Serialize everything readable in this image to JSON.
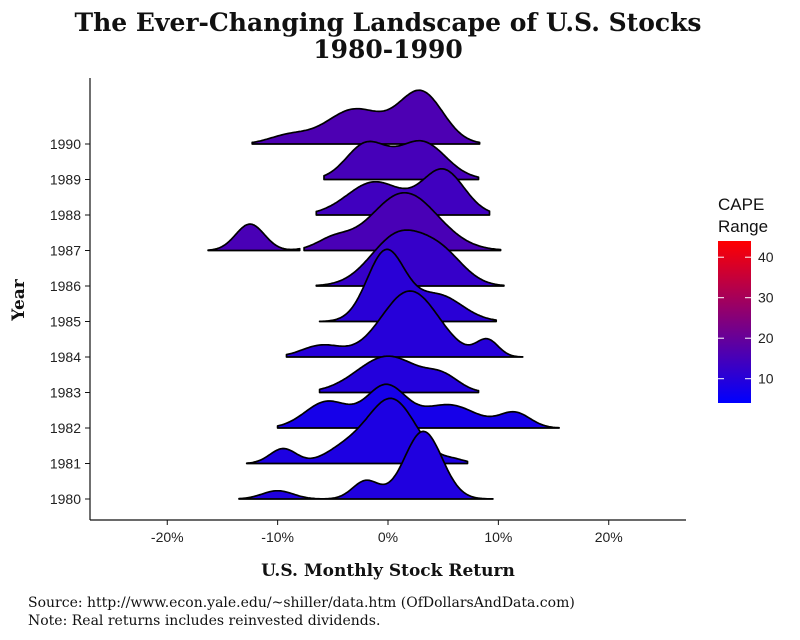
{
  "chart_data": {
    "type": "ridgeline",
    "title_line1": "The Ever-Changing Landscape of U.S. Stocks",
    "title_line2": "1980-1990",
    "xlabel": "U.S. Monthly Stock Return",
    "ylabel": "Year",
    "xlim": [
      -0.27,
      0.27
    ],
    "x_ticks": [
      -0.2,
      -0.1,
      0.0,
      0.1,
      0.2
    ],
    "x_tick_labels": [
      "-20%",
      "-10%",
      "0%",
      "10%",
      "20%"
    ],
    "categories": [
      "1980",
      "1981",
      "1982",
      "1983",
      "1984",
      "1985",
      "1986",
      "1987",
      "1988",
      "1989",
      "1990"
    ],
    "series": [
      {
        "year": "1980",
        "cape": 9.0,
        "peaks": [
          {
            "mu": -0.1,
            "sd": 0.014,
            "h": 0.25
          },
          {
            "mu": -0.02,
            "sd": 0.012,
            "h": 0.55
          },
          {
            "mu": 0.032,
            "sd": 0.017,
            "h": 2.05
          }
        ],
        "range": [
          -0.135,
          0.095
        ]
      },
      {
        "year": "1981",
        "cape": 8.5,
        "peaks": [
          {
            "mu": -0.095,
            "sd": 0.012,
            "h": 0.45
          },
          {
            "mu": -0.04,
            "sd": 0.018,
            "h": 0.4
          },
          {
            "mu": 0.003,
            "sd": 0.022,
            "h": 1.95
          },
          {
            "mu": 0.06,
            "sd": 0.01,
            "h": 0.1
          }
        ],
        "range": [
          -0.128,
          0.072
        ]
      },
      {
        "year": "1982",
        "cape": 7.5,
        "peaks": [
          {
            "mu": -0.055,
            "sd": 0.02,
            "h": 0.8
          },
          {
            "mu": -0.002,
            "sd": 0.018,
            "h": 1.25
          },
          {
            "mu": 0.055,
            "sd": 0.025,
            "h": 0.7
          },
          {
            "mu": 0.115,
            "sd": 0.014,
            "h": 0.45
          }
        ],
        "range": [
          -0.1,
          0.155
        ]
      },
      {
        "year": "1983",
        "cape": 9.5,
        "peaks": [
          {
            "mu": 0.0,
            "sd": 0.028,
            "h": 1.1
          },
          {
            "mu": 0.05,
            "sd": 0.015,
            "h": 0.4
          }
        ],
        "range": [
          -0.062,
          0.082
        ]
      },
      {
        "year": "1984",
        "cape": 10.0,
        "peaks": [
          {
            "mu": -0.06,
            "sd": 0.018,
            "h": 0.35
          },
          {
            "mu": 0.02,
            "sd": 0.026,
            "h": 2.0
          },
          {
            "mu": 0.09,
            "sd": 0.01,
            "h": 0.5
          }
        ],
        "range": [
          -0.092,
          0.122
        ]
      },
      {
        "year": "1985",
        "cape": 10.5,
        "peaks": [
          {
            "mu": -0.002,
            "sd": 0.017,
            "h": 2.1
          },
          {
            "mu": 0.045,
            "sd": 0.022,
            "h": 0.8
          }
        ],
        "range": [
          -0.062,
          0.098
        ]
      },
      {
        "year": "1986",
        "cape": 12.5,
        "peaks": [
          {
            "mu": 0.01,
            "sd": 0.025,
            "h": 1.55
          },
          {
            "mu": 0.05,
            "sd": 0.02,
            "h": 0.8
          }
        ],
        "range": [
          -0.065,
          0.105
        ]
      },
      {
        "year": "1987",
        "cape": 15.5,
        "peaks": [
          {
            "mu": -0.125,
            "sd": 0.013,
            "h": 0.8
          },
          {
            "mu": -0.05,
            "sd": 0.015,
            "h": 0.3
          },
          {
            "mu": 0.015,
            "sd": 0.03,
            "h": 1.75
          }
        ],
        "range": [
          -0.163,
          0.102
        ],
        "gap": [
          -0.08,
          -0.076
        ]
      },
      {
        "year": "1988",
        "cape": 14.0,
        "peaks": [
          {
            "mu": -0.012,
            "sd": 0.025,
            "h": 1.0
          },
          {
            "mu": 0.05,
            "sd": 0.019,
            "h": 1.35
          }
        ],
        "range": [
          -0.065,
          0.092
        ]
      },
      {
        "year": "1989",
        "cape": 15.0,
        "peaks": [
          {
            "mu": -0.02,
            "sd": 0.018,
            "h": 1.05
          },
          {
            "mu": 0.03,
            "sd": 0.022,
            "h": 1.15
          }
        ],
        "range": [
          -0.058,
          0.082
        ]
      },
      {
        "year": "1990",
        "cape": 16.0,
        "peaks": [
          {
            "mu": -0.09,
            "sd": 0.018,
            "h": 0.25
          },
          {
            "mu": -0.03,
            "sd": 0.026,
            "h": 1.05
          },
          {
            "mu": 0.03,
            "sd": 0.02,
            "h": 1.55
          }
        ],
        "range": [
          -0.123,
          0.083
        ]
      }
    ],
    "legend": {
      "title_line1": "CAPE",
      "title_line2": "Range",
      "ticks": [
        10,
        20,
        30,
        40
      ],
      "tick_labels": [
        "10",
        "20",
        "30",
        "40"
      ],
      "range": [
        4,
        44
      ],
      "low_color": "#0000ff",
      "high_color": "#ff0000",
      "placement": "right"
    },
    "grid": false
  },
  "caption": {
    "source": "Source:  http://www.econ.yale.edu/~shiller/data.htm (OfDollarsAndData.com)",
    "note": "Note:  Real returns includes reinvested dividends."
  }
}
